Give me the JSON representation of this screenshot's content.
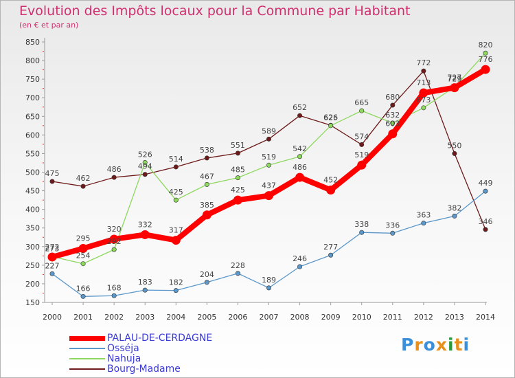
{
  "chart_data": {
    "type": "line",
    "title": "Evolution des Impôts locaux pour la Commune par Habitant",
    "subtitle": "(en € et par an)",
    "xlabel": "",
    "ylabel": "",
    "categories": [
      "2000",
      "2001",
      "2002",
      "2003",
      "2004",
      "2005",
      "2006",
      "2007",
      "2008",
      "2009",
      "2010",
      "2011",
      "2012",
      "2013",
      "2014"
    ],
    "ylim": [
      150,
      850
    ],
    "yticks": [
      150,
      200,
      250,
      300,
      350,
      400,
      450,
      500,
      550,
      600,
      650,
      700,
      750,
      800,
      850
    ],
    "grid": false,
    "legend_position": "bottom-left",
    "series": [
      {
        "name": "Bourg-Madame",
        "color": "#6e1a1a",
        "values": [
          475,
          462,
          486,
          494,
          514,
          538,
          551,
          589,
          652,
          626,
          574,
          680,
          772,
          550,
          346
        ]
      },
      {
        "name": "Nahuja",
        "color": "#8ed85e",
        "values": [
          273,
          254,
          292,
          526,
          425,
          467,
          485,
          519,
          542,
          625,
          665,
          632,
          673,
          729,
          820
        ]
      },
      {
        "name": "Osséja",
        "color": "#5b97c9",
        "values": [
          227,
          166,
          168,
          183,
          182,
          204,
          228,
          189,
          246,
          277,
          338,
          336,
          363,
          382,
          449
        ]
      },
      {
        "name": "PALAU-DE-CERDAGNE",
        "color": "#ff0000",
        "values": [
          272,
          295,
          320,
          332,
          317,
          385,
          425,
          437,
          486,
          452,
          519,
          603,
          713,
          727,
          776
        ]
      }
    ]
  },
  "legend": {
    "items": [
      {
        "label": "PALAU-DE-CERDAGNE",
        "color": "#ff0000"
      },
      {
        "label": "Osséja",
        "color": "#5b97c9"
      },
      {
        "label": "Nahuja",
        "color": "#8ed85e"
      },
      {
        "label": "Bourg-Madame",
        "color": "#6e1a1a"
      }
    ]
  },
  "brand": {
    "letters": [
      "P",
      "r",
      "o",
      "x",
      "i",
      "t",
      "i"
    ],
    "colors": [
      "#3a8fd8",
      "#e8901c",
      "#3a8fd8",
      "#e8901c",
      "#2a9a3a",
      "#e8901c",
      "#3a8fd8"
    ]
  }
}
